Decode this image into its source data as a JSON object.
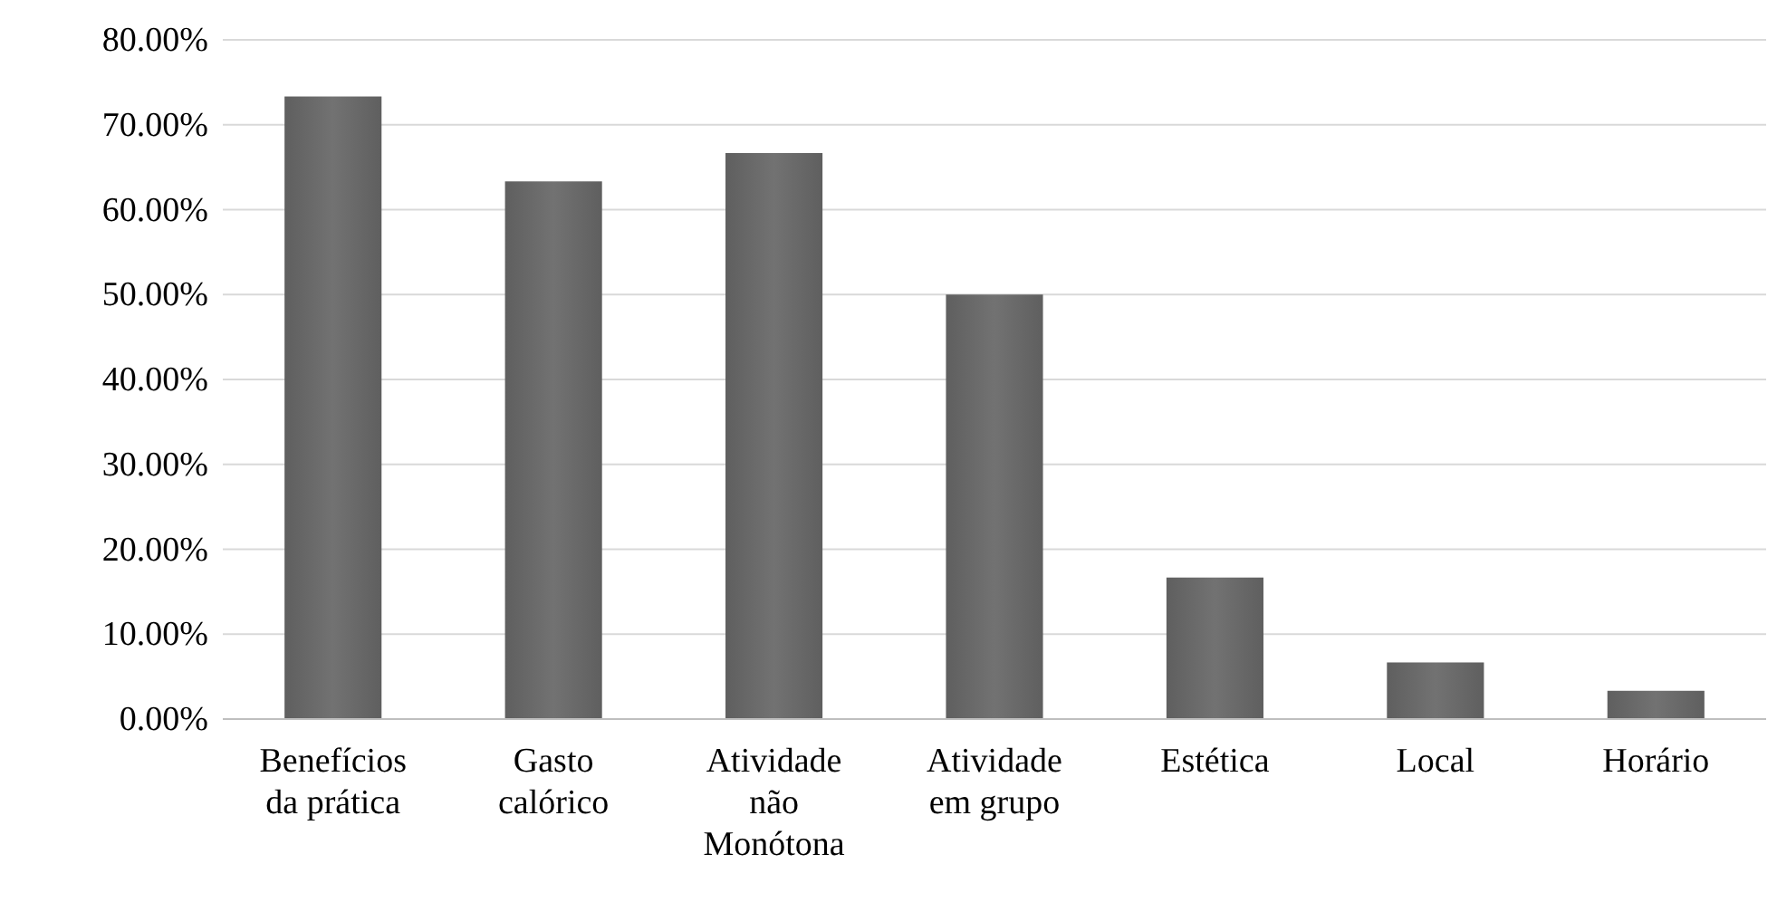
{
  "chart_data": {
    "type": "bar",
    "categories": [
      "Benefícios da prática",
      "Gasto calórico",
      "Atividade não Monótona",
      "Atividade em grupo",
      "Estética",
      "Local",
      "Horário"
    ],
    "values": [
      73.33,
      63.33,
      66.67,
      50,
      16.67,
      6.67,
      3.33
    ],
    "color": "#6e6e6e",
    "ylim": [
      0,
      80
    ],
    "yticks": [
      {
        "value": 0,
        "label": "0.00%"
      },
      {
        "value": 10,
        "label": "10.00%"
      },
      {
        "value": 20,
        "label": "20.00%"
      },
      {
        "value": 30,
        "label": "30.00%"
      },
      {
        "value": 40,
        "label": "40.00%"
      },
      {
        "value": 50,
        "label": "50.00%"
      },
      {
        "value": 60,
        "label": "60.00%"
      },
      {
        "value": 70,
        "label": "70.00%"
      },
      {
        "value": 80,
        "label": "80.00%"
      }
    ],
    "grid": "y"
  }
}
